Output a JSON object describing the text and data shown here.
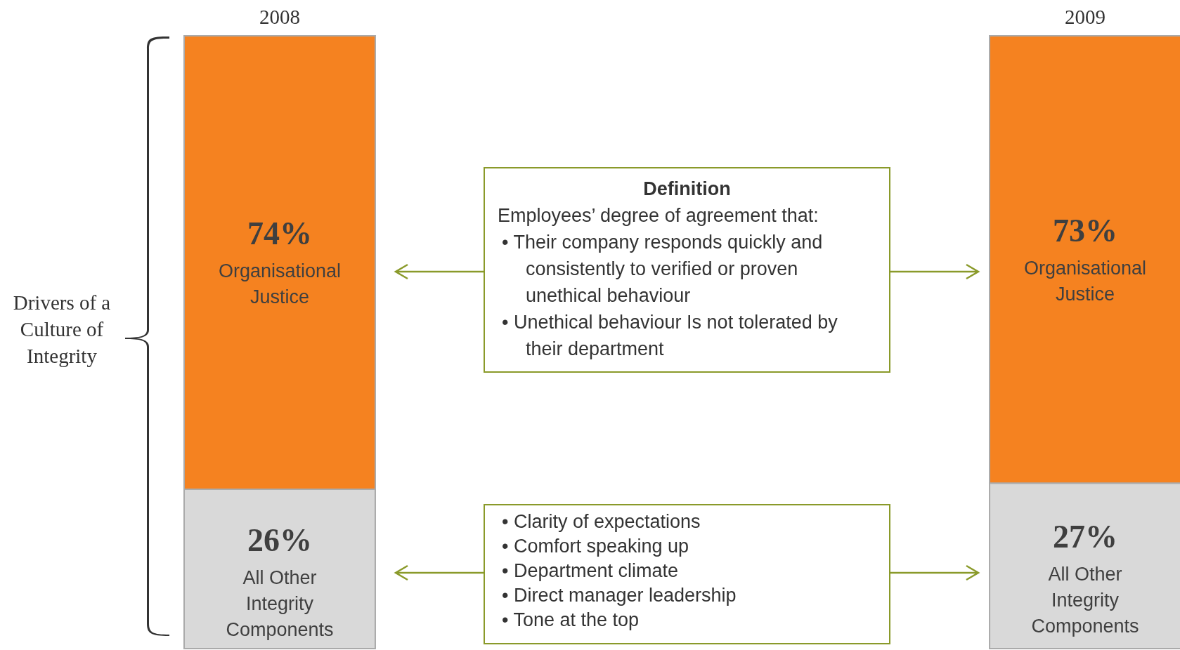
{
  "chart_data": {
    "type": "bar",
    "stacked": true,
    "ylabel": "Drivers of a Culture of Integrity",
    "categories": [
      "2008",
      "2009"
    ],
    "series": [
      {
        "name": "All Other Integrity Components",
        "color": "#d9d9d9",
        "values": [
          26,
          27
        ],
        "value_labels": [
          "26%",
          "27%"
        ]
      },
      {
        "name": "Organisational Justice",
        "color": "#f58220",
        "values": [
          74,
          73
        ],
        "value_labels": [
          "74%",
          "73%"
        ]
      }
    ],
    "annotations": [
      "Definition",
      "Employees’ degree of agreement that:",
      "• Their company responds quickly and consistently to verified or proven unethical behaviour",
      "• Unethical behaviour Is not tolerated by their department",
      "• Clarity of expectations",
      "• Comfort speaking up",
      "• Department climate",
      "• Direct manager leadership",
      "• Tone at the top"
    ]
  }
}
